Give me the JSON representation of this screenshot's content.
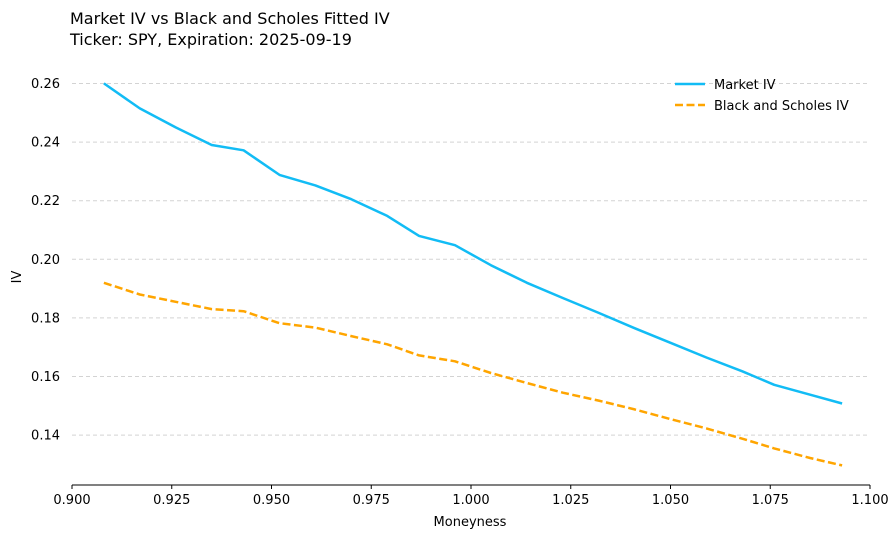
{
  "chart_data": {
    "type": "line",
    "title": "Market IV vs Black and Scholes Fitted IV",
    "subtitle": "Ticker: SPY, Expiration: 2025-09-19",
    "xlabel": "Moneyness",
    "ylabel": "IV",
    "xlim": [
      0.9,
      1.1
    ],
    "ylim": [
      0.123,
      0.268
    ],
    "xticks": [
      "0.900",
      "0.925",
      "0.950",
      "0.975",
      "1.000",
      "1.025",
      "1.050",
      "1.075",
      "1.100"
    ],
    "yticks": [
      "0.14",
      "0.16",
      "0.18",
      "0.20",
      "0.22",
      "0.24",
      "0.26"
    ],
    "grid": "y-dashed",
    "legend_position": "top-right",
    "series": [
      {
        "name": "Market IV",
        "color": "#12bcf5",
        "style": "solid",
        "x": [
          0.908,
          0.917,
          0.926,
          0.935,
          0.943,
          0.952,
          0.961,
          0.97,
          0.979,
          0.987,
          0.996,
          1.005,
          1.014,
          1.023,
          1.032,
          1.041,
          1.05,
          1.059,
          1.068,
          1.076,
          1.085,
          1.093
        ],
        "values": [
          0.26,
          0.2515,
          0.245,
          0.239,
          0.2372,
          0.2288,
          0.2252,
          0.2205,
          0.2148,
          0.208,
          0.2048,
          0.198,
          0.192,
          0.1868,
          0.1817,
          0.1765,
          0.1715,
          0.1665,
          0.1618,
          0.1572,
          0.1538,
          0.1508
        ]
      },
      {
        "name": "Black and Scholes IV",
        "color": "#ffa500",
        "style": "dashed",
        "x": [
          0.908,
          0.917,
          0.926,
          0.935,
          0.943,
          0.952,
          0.961,
          0.97,
          0.979,
          0.987,
          0.996,
          1.005,
          1.014,
          1.023,
          1.032,
          1.041,
          1.05,
          1.059,
          1.068,
          1.076,
          1.085,
          1.093
        ],
        "values": [
          0.192,
          0.188,
          0.1855,
          0.183,
          0.1823,
          0.1782,
          0.1767,
          0.1738,
          0.171,
          0.1672,
          0.1652,
          0.1612,
          0.1578,
          0.1545,
          0.1518,
          0.1488,
          0.1455,
          0.1423,
          0.1388,
          0.1355,
          0.1322,
          0.1297
        ]
      }
    ]
  }
}
